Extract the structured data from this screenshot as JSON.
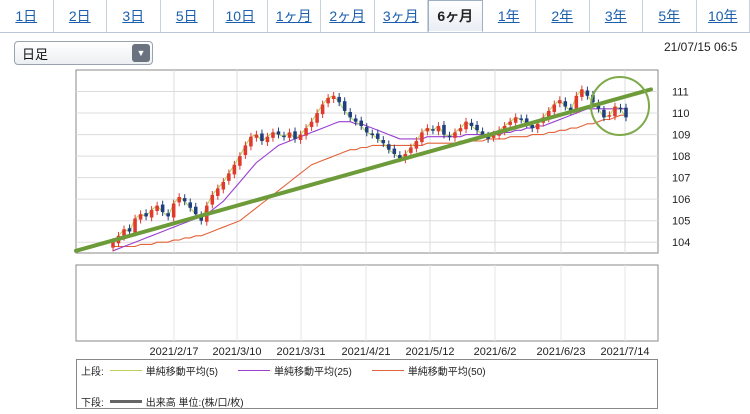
{
  "tabs": [
    {
      "label": "1日",
      "active": false
    },
    {
      "label": "2日",
      "active": false
    },
    {
      "label": "3日",
      "active": false
    },
    {
      "label": "5日",
      "active": false
    },
    {
      "label": "10日",
      "active": false
    },
    {
      "label": "1ヶ月",
      "active": false
    },
    {
      "label": "2ヶ月",
      "active": false
    },
    {
      "label": "3ヶ月",
      "active": false
    },
    {
      "label": "6ヶ月",
      "active": true
    },
    {
      "label": "1年",
      "active": false
    },
    {
      "label": "2年",
      "active": false
    },
    {
      "label": "3年",
      "active": false
    },
    {
      "label": "5年",
      "active": false
    },
    {
      "label": "10年",
      "active": false
    }
  ],
  "period_select": {
    "value": "日足"
  },
  "timestamp": "21/07/15 06:5",
  "legend": {
    "upper_label": "上段:",
    "lower_label": "下段:",
    "ma5": "単純移動平均(5)",
    "ma25": "単純移動平均(25)",
    "ma50": "単純移動平均(50)",
    "volume": "出来高 単位:(株/口/枚)"
  },
  "colors": {
    "up": "#e03a2f",
    "down": "#1f3f7f",
    "ma5": "#b8d05a",
    "ma25": "#9a3fd0",
    "ma50": "#e2633a",
    "trend": "#6e9b3a",
    "circle": "#7eaa4b"
  },
  "chart_data": {
    "type": "candlestick",
    "x_tick_labels": [
      "2021/2/17",
      "2021/3/10",
      "2021/3/31",
      "2021/4/21",
      "2021/5/12",
      "2021/6/2",
      "2021/6/23",
      "2021/7/14"
    ],
    "y_ticks": [
      104,
      105,
      106,
      107,
      108,
      109,
      110,
      111
    ],
    "ylim": [
      103.5,
      112
    ],
    "grid": true,
    "close_series": [
      104.0,
      104.3,
      104.6,
      104.5,
      105.1,
      105.3,
      105.2,
      105.5,
      105.7,
      105.4,
      105.2,
      105.8,
      106.1,
      105.9,
      105.6,
      105.3,
      105.0,
      105.7,
      106.2,
      106.5,
      106.8,
      107.2,
      107.6,
      108.0,
      108.5,
      108.9,
      109.0,
      108.7,
      108.9,
      109.1,
      109.0,
      108.9,
      109.1,
      108.8,
      109.0,
      109.3,
      109.6,
      110.0,
      110.4,
      110.7,
      110.8,
      110.5,
      110.1,
      109.8,
      109.6,
      109.4,
      109.1,
      109.0,
      108.8,
      108.6,
      108.3,
      108.1,
      107.9,
      108.1,
      108.4,
      108.7,
      109.1,
      109.3,
      109.2,
      109.4,
      109.0,
      108.9,
      109.1,
      109.3,
      109.6,
      109.4,
      109.2,
      109.0,
      108.8,
      109.0,
      109.2,
      109.4,
      109.6,
      109.8,
      109.7,
      109.5,
      109.3,
      109.5,
      109.8,
      110.1,
      110.4,
      110.6,
      110.3,
      110.1,
      110.8,
      111.1,
      110.8,
      110.5,
      110.2,
      109.8,
      109.9,
      110.3,
      110.2,
      109.8
    ],
    "series": [
      {
        "name": "単純移動平均(5)",
        "values": [
          104.0,
          104.3,
          104.6,
          104.5,
          105.1,
          105.3,
          105.2,
          105.5,
          105.7,
          105.4,
          105.2,
          105.8,
          106.1,
          105.9,
          105.6,
          105.3,
          105.0,
          105.7,
          106.2,
          106.5,
          106.8,
          107.2,
          107.6,
          108.0,
          108.5,
          108.9,
          109.0,
          108.7,
          108.9,
          109.1,
          109.0,
          108.9,
          109.1,
          108.8,
          109.0,
          109.3,
          109.6,
          110.0,
          110.4,
          110.7,
          110.8,
          110.5,
          110.1,
          109.8,
          109.6,
          109.4,
          109.1,
          109.0,
          108.8,
          108.6,
          108.3,
          108.1,
          107.9,
          108.1,
          108.4,
          108.7,
          109.1,
          109.3,
          109.2,
          109.4,
          109.0,
          108.9,
          109.1,
          109.3,
          109.6,
          109.4,
          109.2,
          109.0,
          108.8,
          109.0,
          109.2,
          109.4,
          109.6,
          109.8,
          109.7,
          109.5,
          109.3,
          109.5,
          109.8,
          110.1,
          110.4,
          110.6,
          110.3,
          110.1,
          110.8,
          111.1,
          110.8,
          110.5,
          110.2,
          109.8,
          109.9,
          110.3,
          110.2,
          109.8
        ]
      },
      {
        "name": "単純移動平均(25)",
        "values": [
          103.6,
          103.7,
          103.8,
          103.9,
          104.0,
          104.1,
          104.2,
          104.3,
          104.4,
          104.5,
          104.6,
          104.7,
          104.8,
          104.9,
          105.0,
          105.1,
          105.2,
          105.3,
          105.5,
          105.7,
          105.9,
          106.2,
          106.5,
          106.8,
          107.1,
          107.4,
          107.7,
          107.9,
          108.1,
          108.3,
          108.5,
          108.6,
          108.7,
          108.8,
          108.9,
          109.0,
          109.1,
          109.2,
          109.3,
          109.4,
          109.5,
          109.6,
          109.6,
          109.6,
          109.5,
          109.5,
          109.4,
          109.3,
          109.2,
          109.1,
          109.0,
          108.9,
          108.8,
          108.8,
          108.8,
          108.8,
          108.8,
          108.9,
          108.9,
          108.9,
          108.9,
          108.9,
          108.9,
          108.9,
          109.0,
          109.0,
          109.0,
          109.0,
          109.0,
          109.0,
          109.0,
          109.1,
          109.1,
          109.2,
          109.2,
          109.3,
          109.3,
          109.4,
          109.4,
          109.5,
          109.6,
          109.7,
          109.8,
          109.9,
          110.0,
          110.1,
          110.2,
          110.2,
          110.2,
          110.2,
          110.2,
          110.2,
          110.2,
          110.2
        ]
      },
      {
        "name": "単純移動平均(50)",
        "values": [
          103.8,
          103.8,
          103.8,
          103.8,
          103.8,
          103.9,
          103.9,
          103.9,
          104.0,
          104.0,
          104.0,
          104.1,
          104.1,
          104.2,
          104.2,
          104.3,
          104.3,
          104.4,
          104.5,
          104.6,
          104.7,
          104.8,
          104.9,
          105.0,
          105.2,
          105.4,
          105.6,
          105.8,
          106.0,
          106.2,
          106.4,
          106.6,
          106.8,
          107.0,
          107.2,
          107.4,
          107.6,
          107.7,
          107.8,
          107.9,
          108.0,
          108.1,
          108.2,
          108.3,
          108.3,
          108.4,
          108.4,
          108.5,
          108.5,
          108.5,
          108.5,
          108.5,
          108.5,
          108.5,
          108.5,
          108.5,
          108.5,
          108.6,
          108.6,
          108.6,
          108.6,
          108.6,
          108.6,
          108.7,
          108.7,
          108.7,
          108.7,
          108.7,
          108.8,
          108.8,
          108.8,
          108.8,
          108.9,
          108.9,
          108.9,
          108.9,
          109.0,
          109.0,
          109.0,
          109.1,
          109.1,
          109.2,
          109.2,
          109.3,
          109.3,
          109.4,
          109.5,
          109.5,
          109.6,
          109.7,
          109.7,
          109.8,
          109.9,
          109.9
        ]
      }
    ],
    "trendline": {
      "from": {
        "x": "2021/1/25",
        "y": 103.6
      },
      "to": {
        "x": "2021/7/15",
        "y": 111.1
      }
    }
  }
}
